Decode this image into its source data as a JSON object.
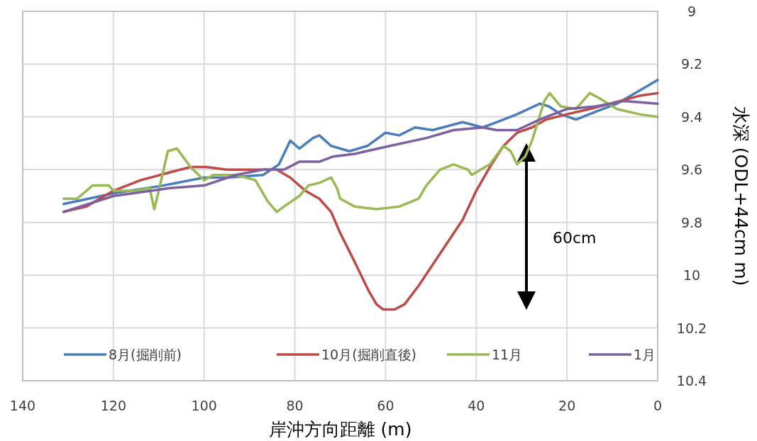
{
  "chart_data": {
    "type": "line",
    "xlabel": "岸沖方向距離 (m)",
    "ylabel": "水深 (ODL+44cm m)",
    "xlim": [
      140,
      0
    ],
    "xticks": [
      140,
      120,
      100,
      80,
      60,
      40,
      20,
      0
    ],
    "ylim": [
      10.4,
      9
    ],
    "yticks": [
      9,
      9.2,
      9.4,
      9.6,
      9.8,
      10,
      10.2,
      10.4
    ],
    "grid": true,
    "legend": "bottom",
    "line_style": "solid",
    "marker": "none",
    "annotations": [
      "60cm"
    ],
    "series": [
      {
        "name": "8月(掘削前)",
        "color": "#4a7ebb",
        "x": [
          131,
          120,
          109,
          100,
          95,
          87,
          83.5,
          81,
          79,
          76,
          74.6,
          72,
          68,
          64,
          60,
          57,
          53.5,
          49.6,
          43,
          38.6,
          35.5,
          31,
          26,
          24,
          21.4,
          18,
          13.6,
          9,
          4,
          0
        ],
        "values": [
          9.73,
          9.69,
          9.66,
          9.63,
          9.63,
          9.62,
          9.58,
          9.49,
          9.52,
          9.48,
          9.47,
          9.51,
          9.53,
          9.51,
          9.46,
          9.47,
          9.44,
          9.45,
          9.42,
          9.44,
          9.42,
          9.39,
          9.35,
          9.36,
          9.39,
          9.41,
          9.38,
          9.35,
          9.3,
          9.26
        ]
      },
      {
        "name": "10月(掘削直後)",
        "color": "#be4b48",
        "x": [
          131,
          126,
          120,
          114,
          107.5,
          103,
          99.6,
          95,
          88.7,
          84,
          81,
          77.7,
          74.6,
          72,
          70,
          66.8,
          63.7,
          62,
          60.5,
          58,
          55.8,
          52.7,
          49.6,
          46.5,
          43,
          40,
          37,
          34,
          31,
          27.7,
          24.6,
          20,
          15,
          10.5,
          4,
          0
        ],
        "values": [
          9.76,
          9.74,
          9.68,
          9.64,
          9.61,
          9.59,
          9.59,
          9.6,
          9.6,
          9.6,
          9.63,
          9.68,
          9.71,
          9.76,
          9.84,
          9.95,
          10.06,
          10.11,
          10.13,
          10.13,
          10.11,
          10.04,
          9.96,
          9.88,
          9.79,
          9.68,
          9.59,
          9.51,
          9.46,
          9.44,
          9.41,
          9.39,
          9.37,
          9.35,
          9.32,
          9.31
        ]
      },
      {
        "name": "11月",
        "color": "#98b954",
        "x": [
          131,
          128,
          124.6,
          121,
          120,
          115,
          112,
          111,
          110,
          108,
          106,
          103,
          100,
          98,
          93,
          88.7,
          86,
          84,
          82.4,
          79,
          77,
          74.6,
          72,
          70.7,
          70,
          66.8,
          62,
          57,
          52.7,
          51,
          48,
          45,
          41.8,
          41,
          37,
          34,
          32.4,
          31,
          29.2,
          27.7,
          25,
          23.8,
          21.4,
          18,
          15,
          12.8,
          9,
          4,
          0
        ],
        "values": [
          9.71,
          9.71,
          9.66,
          9.66,
          9.68,
          9.68,
          9.67,
          9.75,
          9.68,
          9.53,
          9.52,
          9.59,
          9.64,
          9.62,
          9.62,
          9.64,
          9.72,
          9.76,
          9.74,
          9.7,
          9.66,
          9.65,
          9.63,
          9.67,
          9.71,
          9.74,
          9.75,
          9.74,
          9.71,
          9.66,
          9.6,
          9.58,
          9.6,
          9.62,
          9.58,
          9.51,
          9.53,
          9.58,
          9.55,
          9.49,
          9.34,
          9.31,
          9.36,
          9.37,
          9.31,
          9.33,
          9.37,
          9.39,
          9.4
        ]
      },
      {
        "name": "1月",
        "color": "#7d60a0",
        "x": [
          131,
          120,
          107.5,
          100,
          93,
          87,
          82.4,
          79,
          74.6,
          71.5,
          66.8,
          59,
          51,
          45,
          38.6,
          35.5,
          31,
          26,
          20,
          13.6,
          7.4,
          0
        ],
        "values": [
          9.76,
          9.7,
          9.67,
          9.66,
          9.62,
          9.6,
          9.6,
          9.57,
          9.57,
          9.55,
          9.54,
          9.51,
          9.48,
          9.45,
          9.44,
          9.45,
          9.45,
          9.41,
          9.37,
          9.36,
          9.34,
          9.35
        ]
      }
    ]
  }
}
